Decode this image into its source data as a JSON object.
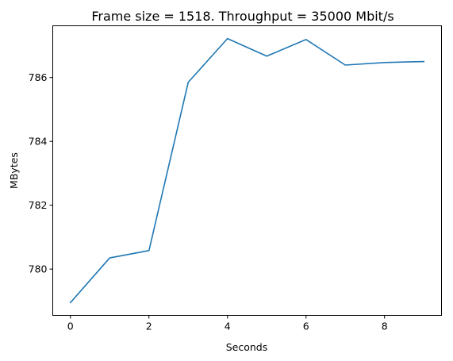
{
  "chart_data": {
    "type": "line",
    "title": "Frame size = 1518. Throughput = 35000 Mbit/s",
    "xlabel": "Seconds",
    "ylabel": "MBytes",
    "x": [
      0,
      1,
      2,
      3,
      4,
      5,
      6,
      7,
      8,
      9
    ],
    "series": [
      {
        "values": [
          778.95,
          780.35,
          780.58,
          785.85,
          787.22,
          786.67,
          787.19,
          786.39,
          786.47,
          786.5
        ],
        "color": "#1f77b4"
      }
    ],
    "xlim": [
      -0.45,
      9.45
    ],
    "ylim": [
      778.55,
      787.62
    ],
    "xticks": [
      0,
      2,
      4,
      6,
      8
    ],
    "yticks": [
      780,
      782,
      784,
      786
    ],
    "grid": false,
    "legend": "none"
  }
}
